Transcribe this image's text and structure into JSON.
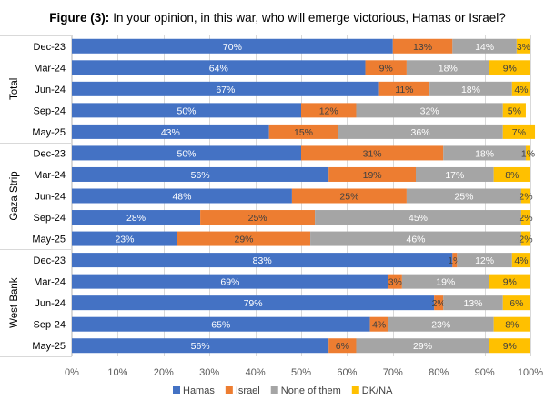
{
  "chart_data": {
    "type": "bar",
    "orientation": "horizontal-stacked-100",
    "title_prefix": "Figure (3):",
    "title": "In your opinion, in this war, who will emerge victorious, Hamas or Israel?",
    "xlabel": "",
    "ylabel": "",
    "xlim": [
      0,
      100
    ],
    "x_ticks": [
      "0%",
      "10%",
      "20%",
      "30%",
      "40%",
      "50%",
      "60%",
      "70%",
      "80%",
      "90%",
      "100%"
    ],
    "grid": true,
    "legend_position": "bottom",
    "series": [
      {
        "name": "Hamas",
        "color": "#4472C4"
      },
      {
        "name": "Israel",
        "color": "#ED7D31"
      },
      {
        "name": "None of them",
        "color": "#A5A5A5"
      },
      {
        "name": "DK/NA",
        "color": "#FFC000"
      }
    ],
    "groups": [
      {
        "name": "Total",
        "rows": [
          {
            "category": "Dec-23",
            "values": [
              70,
              13,
              14,
              3
            ]
          },
          {
            "category": "Mar-24",
            "values": [
              64,
              9,
              18,
              9
            ]
          },
          {
            "category": "Jun-24",
            "values": [
              67,
              11,
              18,
              4
            ]
          },
          {
            "category": "Sep-24",
            "values": [
              50,
              12,
              32,
              5
            ]
          },
          {
            "category": "May-25",
            "values": [
              43,
              15,
              36,
              7
            ]
          }
        ]
      },
      {
        "name": "Gaza Strip",
        "rows": [
          {
            "category": "Dec-23",
            "values": [
              50,
              31,
              18,
              1
            ]
          },
          {
            "category": "Mar-24",
            "values": [
              56,
              19,
              17,
              8
            ]
          },
          {
            "category": "Jun-24",
            "values": [
              48,
              25,
              25,
              2
            ]
          },
          {
            "category": "Sep-24",
            "values": [
              28,
              25,
              45,
              2
            ]
          },
          {
            "category": "May-25",
            "values": [
              23,
              29,
              46,
              2
            ]
          }
        ]
      },
      {
        "name": "West Bank",
        "rows": [
          {
            "category": "Dec-23",
            "values": [
              83,
              1,
              12,
              4
            ]
          },
          {
            "category": "Mar-24",
            "values": [
              69,
              3,
              19,
              9
            ]
          },
          {
            "category": "Jun-24",
            "values": [
              79,
              2,
              13,
              6
            ]
          },
          {
            "category": "Sep-24",
            "values": [
              65,
              4,
              23,
              8
            ]
          },
          {
            "category": "May-25",
            "values": [
              56,
              6,
              29,
              9
            ]
          }
        ]
      }
    ]
  }
}
